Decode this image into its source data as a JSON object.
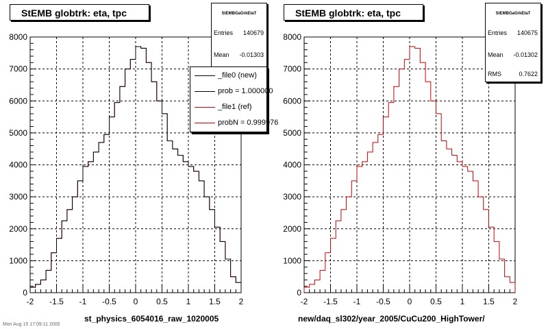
{
  "pads": [
    {
      "title": "StEMB globtrk: eta, tpc",
      "stats": {
        "name": "StEMBGaGrkEtaT",
        "rows": [
          {
            "label": "Entries",
            "value": "140679"
          },
          {
            "label": "Mean",
            "value": "-0.01303"
          }
        ]
      },
      "legend": [
        {
          "label": "_file0 (new)",
          "color": "#000000"
        },
        {
          "label": "prob = 1.000000",
          "color": "#000000"
        },
        {
          "label": "_file1 (ref)",
          "color": "#cc0000"
        },
        {
          "label": "probN = 0.999976",
          "color": "#cc0000"
        }
      ],
      "xtitle": "st_physics_6054016_raw_1020005"
    },
    {
      "title": "StEMB globtrk: eta, tpc",
      "stats": {
        "name": "StEMBGaGrkEtaT",
        "rows": [
          {
            "label": "Entries",
            "value": "140675"
          },
          {
            "label": "Mean",
            "value": "-0.01302"
          },
          {
            "label": "RMS",
            "value": "0.7622"
          }
        ]
      },
      "xtitle": "new/daq_sl302/year_2005/CuCu200_HighTower/"
    }
  ],
  "footer_text": "Mon Aug 15 17:09:11 2005",
  "colors": {
    "new": "#000000",
    "ref": "#cc0000",
    "grid": "#000000"
  },
  "chart_data": [
    {
      "type": "histogram",
      "title": "StEMB globtrk: eta, tpc",
      "xlabel": "st_physics_6054016_raw_1020005",
      "ylabel": "",
      "xlim": [
        -2,
        2
      ],
      "ylim": [
        0,
        8000
      ],
      "xticks": [
        "-2",
        "-1.5",
        "-1",
        "-0.5",
        "0",
        "0.5",
        "1",
        "1.5",
        "2"
      ],
      "yticks": [
        "0",
        "1000",
        "2000",
        "3000",
        "4000",
        "5000",
        "6000",
        "7000",
        "8000"
      ],
      "grid": true,
      "bin_edges_range": [
        -2,
        2
      ],
      "bin_width": 0.1,
      "series": [
        {
          "name": "_file0 (new)",
          "values": [
            170,
            260,
            400,
            700,
            1250,
            1700,
            2250,
            2600,
            3000,
            3500,
            3950,
            4100,
            4400,
            4700,
            4950,
            5500,
            5950,
            6450,
            7000,
            7300,
            7700,
            7650,
            7200,
            6600,
            6000,
            5600,
            4750,
            4500,
            4300,
            4100,
            3950,
            3800,
            3500,
            3000,
            2600,
            2050,
            1600,
            1050,
            500,
            320
          ]
        },
        {
          "name": "_file1 (ref)",
          "values": [
            170,
            260,
            400,
            700,
            1250,
            1700,
            2250,
            2600,
            3000,
            3500,
            3950,
            4100,
            4400,
            4700,
            4950,
            5500,
            5950,
            6450,
            7000,
            7300,
            7700,
            7650,
            7200,
            6600,
            6000,
            5600,
            4750,
            4500,
            4300,
            4100,
            3950,
            3800,
            3500,
            3000,
            2600,
            2050,
            1600,
            1050,
            500,
            320
          ]
        }
      ]
    },
    {
      "type": "histogram",
      "title": "StEMB globtrk: eta, tpc",
      "xlabel": "new/daq_sl302/year_2005/CuCu200_HighTower/",
      "ylabel": "",
      "xlim": [
        -2,
        2
      ],
      "ylim": [
        0,
        8000
      ],
      "xticks": [
        "-2",
        "-1.5",
        "-1",
        "-0.5",
        "0",
        "0.5",
        "1",
        "1.5",
        "2"
      ],
      "yticks": [
        "0",
        "1000",
        "2000",
        "3000",
        "4000",
        "5000",
        "6000",
        "7000",
        "8000"
      ],
      "grid": true,
      "bin_edges_range": [
        -2,
        2
      ],
      "bin_width": 0.1,
      "series": [
        {
          "name": "",
          "values": [
            170,
            260,
            400,
            700,
            1250,
            1700,
            2250,
            2600,
            3000,
            3500,
            3950,
            4100,
            4400,
            4700,
            4950,
            5500,
            5950,
            6450,
            7000,
            7300,
            7700,
            7650,
            7200,
            6600,
            6000,
            5600,
            4750,
            4500,
            4300,
            4100,
            3950,
            3800,
            3500,
            3000,
            2600,
            2050,
            1600,
            1050,
            500,
            320
          ]
        }
      ]
    }
  ]
}
